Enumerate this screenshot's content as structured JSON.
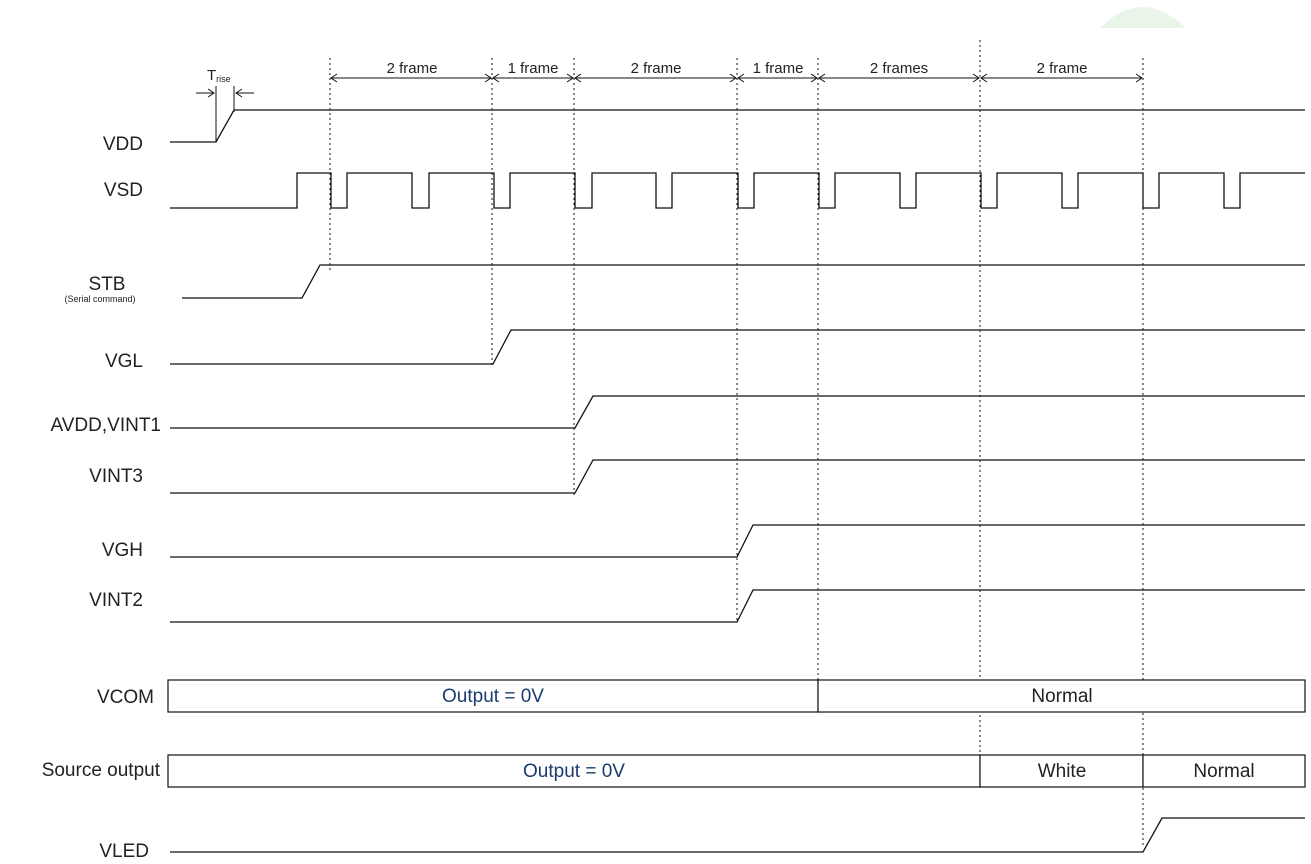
{
  "diagram": {
    "intervals": [
      "2 frame",
      "1 frame",
      "2 frame",
      "1 frame",
      "2 frames",
      "2 frame"
    ],
    "trise": {
      "main": "T",
      "sub": "rise"
    },
    "signals": {
      "vdd": "VDD",
      "vsd": "VSD",
      "stb": "STB",
      "stb_note": "(Serial command)",
      "vgl": "VGL",
      "avdd": "AVDD,VINT1",
      "vint3": "VINT3",
      "vgh": "VGH",
      "vint2": "VINT2",
      "vcom": "VCOM",
      "source": "Source output",
      "vled": "VLED"
    },
    "vcom_boxes": [
      "Output = 0V",
      "Normal"
    ],
    "source_boxes": [
      "Output = 0V",
      "White",
      "Normal"
    ],
    "colors": {
      "line": "#111111",
      "output_text": "#1a3b6e",
      "accent": "#e8f5e8"
    }
  }
}
